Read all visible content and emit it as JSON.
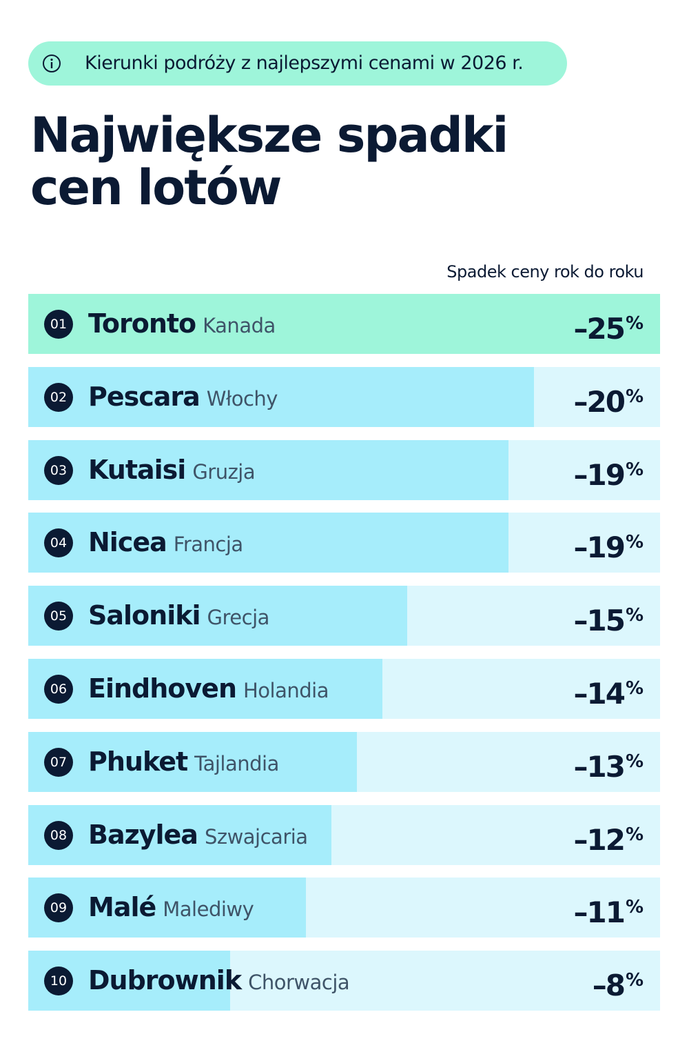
{
  "chart_data": {
    "type": "bar",
    "orientation": "horizontal",
    "badge": "Kierunki podróży z najlepszymi cenami w 2026 r.",
    "title": "Największe spadki cen lotów",
    "value_axis_label": "Spadek ceny rok do roku",
    "ranks": [
      "01",
      "02",
      "03",
      "04",
      "05",
      "06",
      "07",
      "08",
      "09",
      "10"
    ],
    "categories": [
      "Toronto",
      "Pescara",
      "Kutaisi",
      "Nicea",
      "Saloniki",
      "Eindhoven",
      "Phuket",
      "Bazylea",
      "Malé",
      "Dubrownik"
    ],
    "countries": [
      "Kanada",
      "Włochy",
      "Gruzja",
      "Francja",
      "Grecja",
      "Holandia",
      "Tajlandia",
      "Szwajcaria",
      "Malediwy",
      "Chorwacja"
    ],
    "values": [
      -25,
      -20,
      -19,
      -19,
      -15,
      -14,
      -13,
      -12,
      -11,
      -8
    ],
    "value_labels": [
      "–25%",
      "–20%",
      "–19%",
      "–19%",
      "–15%",
      "–14%",
      "–13%",
      "–12%",
      "–11%",
      "–8%"
    ],
    "colors": [
      "#9ef5da",
      "#a6edfb",
      "#a6edfb",
      "#a6edfb",
      "#a6edfb",
      "#a6edfb",
      "#a6edfb",
      "#a6edfb",
      "#a6edfb",
      "#a6edfb"
    ],
    "track_color": "#dcf7fd",
    "xlim": [
      0,
      -25
    ]
  }
}
